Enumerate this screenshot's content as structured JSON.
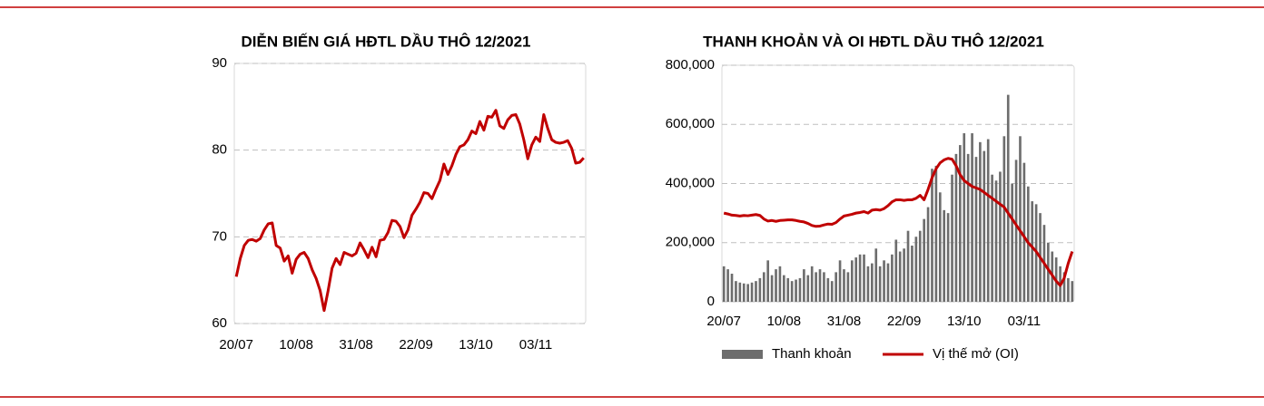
{
  "chart_data": [
    {
      "type": "line",
      "title": "DIỄN BIẾN GIÁ HĐTL DẦU THÔ 12/2021",
      "color": "#c00000",
      "categories": [
        "20/07",
        null,
        null,
        null,
        null,
        null,
        null,
        null,
        null,
        null,
        null,
        null,
        null,
        null,
        null,
        "10/08",
        null,
        null,
        null,
        null,
        null,
        null,
        null,
        null,
        null,
        null,
        null,
        null,
        null,
        null,
        "31/08",
        null,
        null,
        null,
        null,
        null,
        null,
        null,
        null,
        null,
        null,
        null,
        null,
        null,
        null,
        "22/09",
        null,
        null,
        null,
        null,
        null,
        null,
        null,
        null,
        null,
        null,
        null,
        null,
        null,
        null,
        "13/10",
        null,
        null,
        null,
        null,
        null,
        null,
        null,
        null,
        null,
        null,
        null,
        null,
        null,
        null,
        "03/11",
        null,
        null,
        null,
        null,
        null,
        null,
        null,
        null,
        null,
        null,
        null,
        null
      ],
      "values": [
        65.4,
        67.5,
        69.0,
        69.6,
        69.7,
        69.5,
        69.8,
        70.8,
        71.5,
        71.6,
        69.0,
        68.7,
        67.2,
        67.8,
        65.8,
        67.4,
        68.0,
        68.2,
        67.5,
        66.2,
        65.2,
        63.8,
        61.5,
        63.8,
        66.4,
        67.5,
        66.8,
        68.2,
        68.0,
        67.8,
        68.1,
        69.3,
        68.5,
        67.6,
        68.8,
        67.7,
        69.6,
        69.7,
        70.5,
        71.9,
        71.8,
        71.2,
        69.9,
        70.8,
        72.5,
        73.2,
        74.0,
        75.1,
        75.0,
        74.4,
        75.5,
        76.5,
        78.4,
        77.2,
        78.2,
        79.5,
        80.4,
        80.6,
        81.2,
        82.2,
        81.9,
        83.3,
        82.3,
        83.9,
        83.8,
        84.6,
        82.8,
        82.5,
        83.5,
        84.0,
        84.1,
        83.0,
        81.2,
        79.0,
        80.6,
        81.5,
        81.0,
        84.1,
        82.5,
        81.2,
        80.9,
        80.8,
        80.9,
        81.1,
        80.2,
        78.5,
        78.6,
        79.1
      ],
      "ylim": [
        60,
        90
      ],
      "yticks": [
        60,
        70,
        80,
        90
      ],
      "grid": true
    },
    {
      "type": "combo",
      "title": "THANH KHOẢN VÀ OI HĐTL DẦU THÔ 12/2021",
      "categories": [
        "20/07",
        null,
        null,
        null,
        null,
        null,
        null,
        null,
        null,
        null,
        null,
        null,
        null,
        null,
        null,
        "10/08",
        null,
        null,
        null,
        null,
        null,
        null,
        null,
        null,
        null,
        null,
        null,
        null,
        null,
        null,
        "31/08",
        null,
        null,
        null,
        null,
        null,
        null,
        null,
        null,
        null,
        null,
        null,
        null,
        null,
        null,
        "22/09",
        null,
        null,
        null,
        null,
        null,
        null,
        null,
        null,
        null,
        null,
        null,
        null,
        null,
        null,
        "13/10",
        null,
        null,
        null,
        null,
        null,
        null,
        null,
        null,
        null,
        null,
        null,
        null,
        null,
        null,
        "03/11",
        null,
        null,
        null,
        null,
        null,
        null,
        null,
        null,
        null,
        null,
        null,
        null
      ],
      "series": [
        {
          "name": "Thanh khoản",
          "type": "bar",
          "color": "#6d6d6d",
          "values": [
            120000,
            110000,
            95000,
            70000,
            65000,
            62000,
            60000,
            65000,
            70000,
            80000,
            100000,
            140000,
            90000,
            110000,
            120000,
            90000,
            80000,
            70000,
            75000,
            80000,
            110000,
            90000,
            120000,
            100000,
            110000,
            100000,
            80000,
            70000,
            100000,
            140000,
            110000,
            100000,
            140000,
            150000,
            160000,
            160000,
            120000,
            130000,
            180000,
            120000,
            140000,
            130000,
            160000,
            210000,
            170000,
            180000,
            240000,
            190000,
            220000,
            240000,
            280000,
            320000,
            450000,
            460000,
            370000,
            310000,
            300000,
            430000,
            500000,
            530000,
            570000,
            500000,
            570000,
            490000,
            540000,
            510000,
            550000,
            430000,
            410000,
            440000,
            560000,
            700000,
            400000,
            480000,
            560000,
            470000,
            390000,
            340000,
            330000,
            300000,
            260000,
            200000,
            170000,
            150000,
            120000,
            100000,
            80000,
            70000
          ]
        },
        {
          "name": "Vị thế mở (OI)",
          "type": "line",
          "color": "#c00000",
          "values": [
            300000,
            297000,
            293000,
            292000,
            290000,
            292000,
            291000,
            293000,
            295000,
            292000,
            280000,
            273000,
            275000,
            272000,
            275000,
            276000,
            277000,
            277000,
            275000,
            272000,
            270000,
            265000,
            258000,
            255000,
            256000,
            260000,
            263000,
            262000,
            268000,
            280000,
            290000,
            293000,
            296000,
            300000,
            302000,
            305000,
            300000,
            310000,
            312000,
            310000,
            315000,
            325000,
            338000,
            345000,
            345000,
            343000,
            345000,
            345000,
            350000,
            360000,
            345000,
            380000,
            420000,
            450000,
            470000,
            480000,
            485000,
            482000,
            460000,
            430000,
            410000,
            400000,
            390000,
            385000,
            380000,
            370000,
            360000,
            350000,
            340000,
            330000,
            320000,
            300000,
            280000,
            260000,
            240000,
            220000,
            200000,
            185000,
            170000,
            150000,
            130000,
            110000,
            90000,
            70000,
            55000,
            80000,
            130000,
            170000
          ]
        }
      ],
      "ylim": [
        0,
        800000
      ],
      "yticks": [
        0,
        {
          "value": 200000,
          "label": "200,000"
        },
        {
          "value": 400000,
          "label": "400,000"
        },
        {
          "value": 600000,
          "label": "600,000"
        },
        {
          "value": 800000,
          "label": "800,000"
        }
      ],
      "grid": true,
      "legend": "bottom"
    }
  ]
}
